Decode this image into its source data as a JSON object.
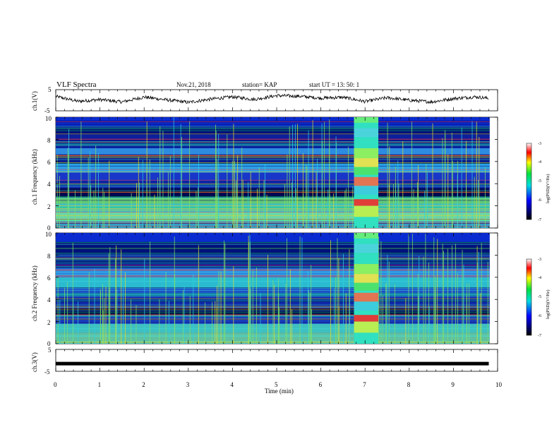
{
  "header": {
    "title": "VLF Spectra",
    "date": "Nov.21, 2018",
    "station": "station= KAP",
    "start": "start  UT =   13: 50: 1"
  },
  "chart_data": [
    {
      "type": "line",
      "panel": "ch1-waveform",
      "ylabel": "ch.1(V)",
      "ylim": [
        -5,
        5
      ],
      "yticks": [
        "5",
        "-5"
      ],
      "color": "#000000",
      "x": [
        0,
        0.5,
        1,
        1.5,
        2,
        2.5,
        3,
        3.5,
        4,
        4.5,
        5,
        5.5,
        6,
        6.5,
        7,
        7.5,
        8,
        8.5,
        9,
        9.5,
        9.8
      ],
      "values": [
        1.8,
        -0.5,
        0.3,
        -0.8,
        1.5,
        0.2,
        -1.0,
        0.5,
        1.6,
        0.4,
        2.2,
        1.9,
        1.0,
        1.4,
        -0.6,
        1.2,
        0.0,
        -0.8,
        0.8,
        1.6,
        0.9
      ]
    },
    {
      "type": "heatmap",
      "panel": "ch1-spectrogram",
      "ylabel": "ch.1 Frequency (kHz)",
      "ylim": [
        0,
        10
      ],
      "yticks": [
        "0",
        "2",
        "4",
        "6",
        "8",
        "10"
      ],
      "colorbar": {
        "label": "log(PSD)(V²/Hz)",
        "ticks": [
          "-3",
          "-4",
          "-5",
          "-6",
          "-7"
        ],
        "range": [
          -7,
          -3
        ]
      },
      "burst_interval_min": [
        6.75,
        7.3
      ]
    },
    {
      "type": "heatmap",
      "panel": "ch2-spectrogram",
      "ylabel": "ch.2 Frequency (kHz)",
      "ylim": [
        0,
        10
      ],
      "yticks": [
        "0",
        "2",
        "4",
        "6",
        "8",
        "10"
      ],
      "colorbar": {
        "label": "log(PSD)(V²/Hz)",
        "ticks": [
          "-3",
          "-4",
          "-5",
          "-6",
          "-7"
        ],
        "range": [
          -7,
          -3
        ]
      },
      "burst_interval_min": [
        6.75,
        7.3
      ]
    },
    {
      "type": "line",
      "panel": "ch3-waveform",
      "ylabel": "ch.3(V)",
      "ylim": [
        -5,
        5
      ],
      "yticks": [
        "5",
        "-5"
      ],
      "color": "#000000",
      "x": [
        0,
        9.8
      ],
      "values": [
        -1.5,
        -1.5
      ]
    }
  ],
  "x_axis": {
    "label": "Time  (min)",
    "range": [
      0,
      10
    ],
    "ticks": [
      "0",
      "1",
      "2",
      "3",
      "4",
      "5",
      "6",
      "7",
      "8",
      "9",
      "10"
    ]
  }
}
